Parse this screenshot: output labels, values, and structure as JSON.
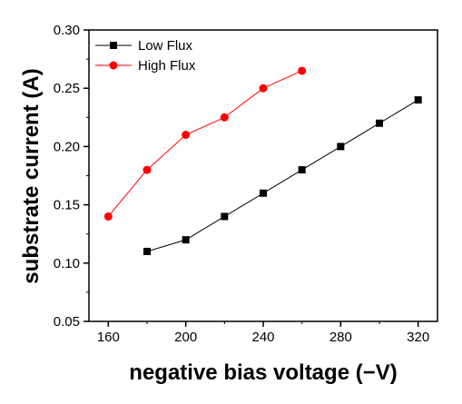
{
  "chart_data": {
    "type": "line",
    "xlabel": "negative bias voltage (−V)",
    "ylabel": "substrate current (A)",
    "xlim": [
      150,
      330
    ],
    "ylim": [
      0.05,
      0.3
    ],
    "xticks": [
      "160",
      "200",
      "240",
      "280",
      "320"
    ],
    "xtick_values": [
      160,
      200,
      240,
      280,
      320
    ],
    "yticks": [
      "0.05",
      "0.10",
      "0.15",
      "0.20",
      "0.25",
      "0.30"
    ],
    "ytick_values": [
      0.05,
      0.1,
      0.15,
      0.2,
      0.25,
      0.3
    ],
    "legend_position": "top-left",
    "grid": false,
    "series": [
      {
        "name": "Low Flux",
        "color": "#000000",
        "marker": "square",
        "x": [
          180,
          200,
          220,
          240,
          260,
          280,
          300,
          320
        ],
        "y": [
          0.11,
          0.12,
          0.14,
          0.16,
          0.18,
          0.2,
          0.22,
          0.24
        ]
      },
      {
        "name": "High Flux",
        "color": "#ff0000",
        "marker": "circle",
        "x": [
          160,
          180,
          200,
          220,
          240,
          260
        ],
        "y": [
          0.14,
          0.18,
          0.21,
          0.225,
          0.25,
          0.265
        ]
      }
    ]
  }
}
